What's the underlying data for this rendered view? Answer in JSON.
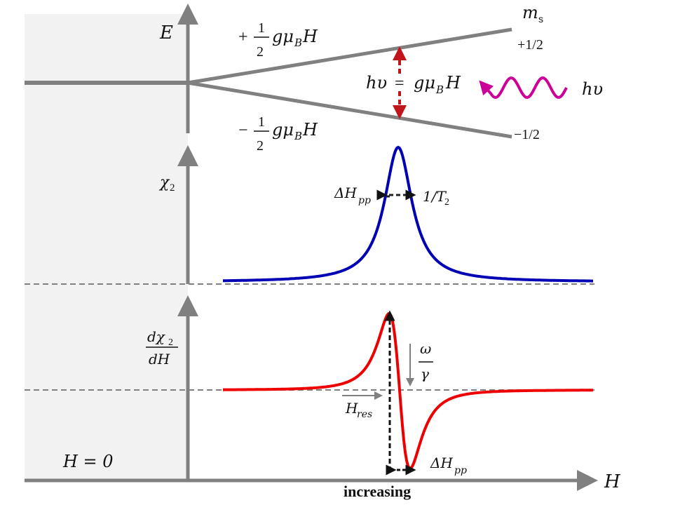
{
  "energy_panel": {
    "axis_label": "E",
    "upper_energy": {
      "sign": "+",
      "num": "1",
      "den": "2",
      "expr": "gμ",
      "sub": "B",
      "tail": "H"
    },
    "lower_energy": {
      "sign": "−",
      "num": "1",
      "den": "2",
      "expr": "gμ",
      "sub": "B",
      "tail": "H"
    },
    "ms_label": "m",
    "ms_sub": "s",
    "upper_state": "+1/2",
    "lower_state": "−1/2",
    "resonance_condition": {
      "lhs": "hυ",
      "eq": "=",
      "rhs": "gμ",
      "sub": "B",
      "tail": "H"
    },
    "photon_label": "hυ",
    "photon_color": "#cc0099",
    "transition_color": "#c0151a",
    "level_color": "#808080"
  },
  "absorption_panel": {
    "axis_label": "χ",
    "axis_sub": "2",
    "width_label": "ΔH",
    "width_sub": "pp",
    "relax_label": "1/T",
    "relax_sub": "2",
    "curve_color": "#0000b4"
  },
  "derivative_panel": {
    "axis_num": "dχ",
    "axis_num_sub": "2",
    "axis_den": "dH",
    "omega": "ω",
    "gamma": "γ",
    "res_label": "H",
    "res_sub": "res",
    "width_label": "ΔH",
    "width_sub": "pp",
    "curve_color": "#ee0000"
  },
  "x_axis": {
    "label": "H",
    "caption": "increasing",
    "zero_label": "H = 0"
  }
}
